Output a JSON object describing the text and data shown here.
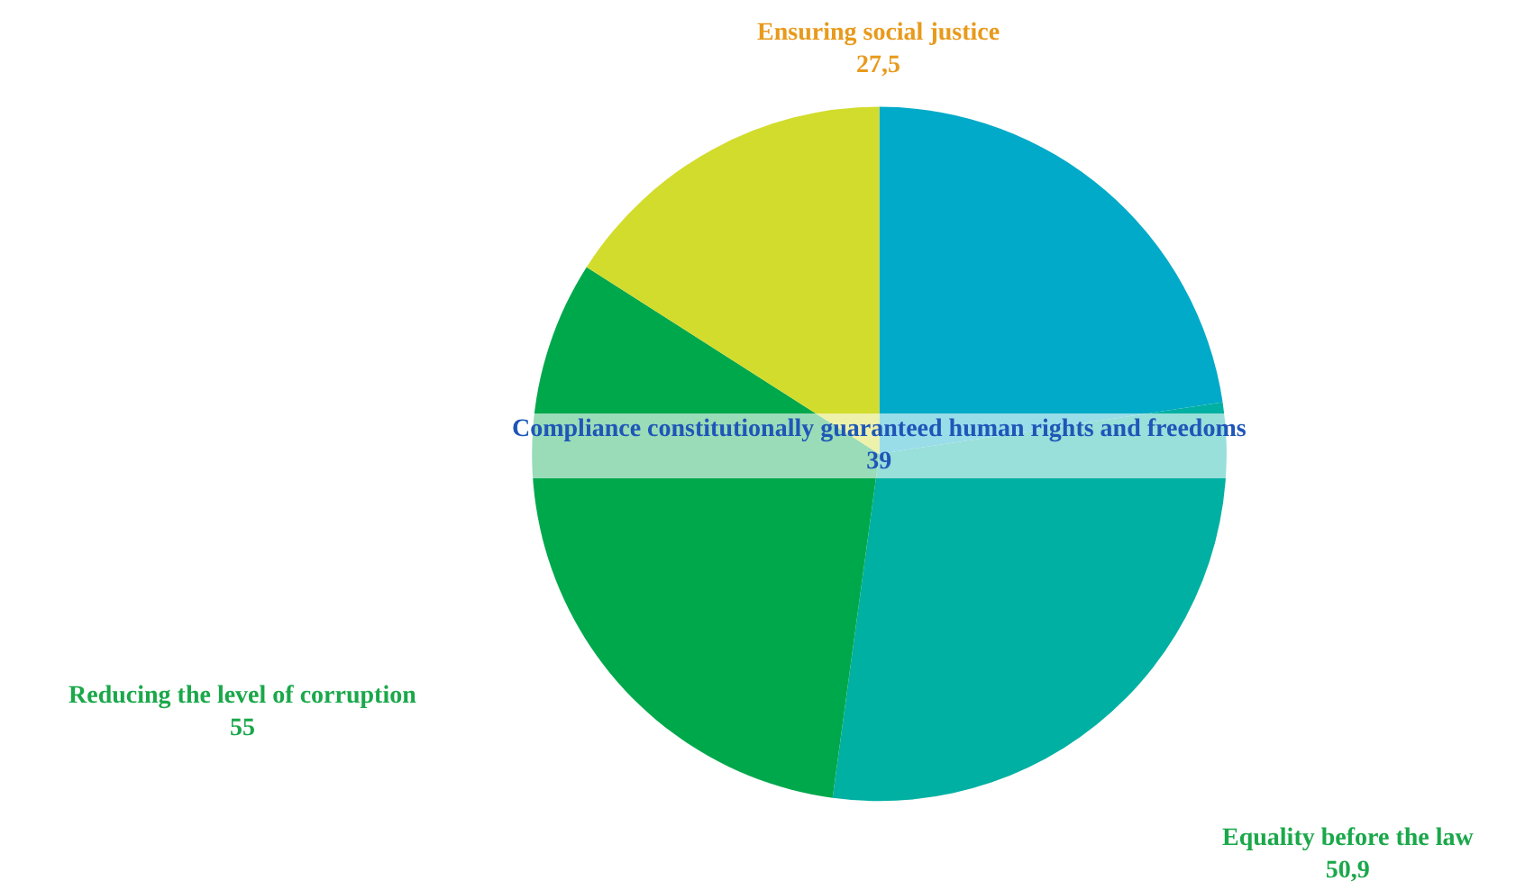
{
  "chart_data": {
    "type": "pie",
    "categories": [
      "Compliance constitutionally guaranteed human rights and freedoms",
      "Equality before the law",
      "Reducing the level of corruption",
      "Ensuring social justice"
    ],
    "values": [
      39,
      50.9,
      55,
      27.5
    ],
    "value_labels": [
      "39",
      "50,9",
      "55",
      "27,5"
    ],
    "colors": [
      "#00aac8",
      "#00b0a2",
      "#00a84c",
      "#d2dc2c"
    ],
    "legend": false
  }
}
